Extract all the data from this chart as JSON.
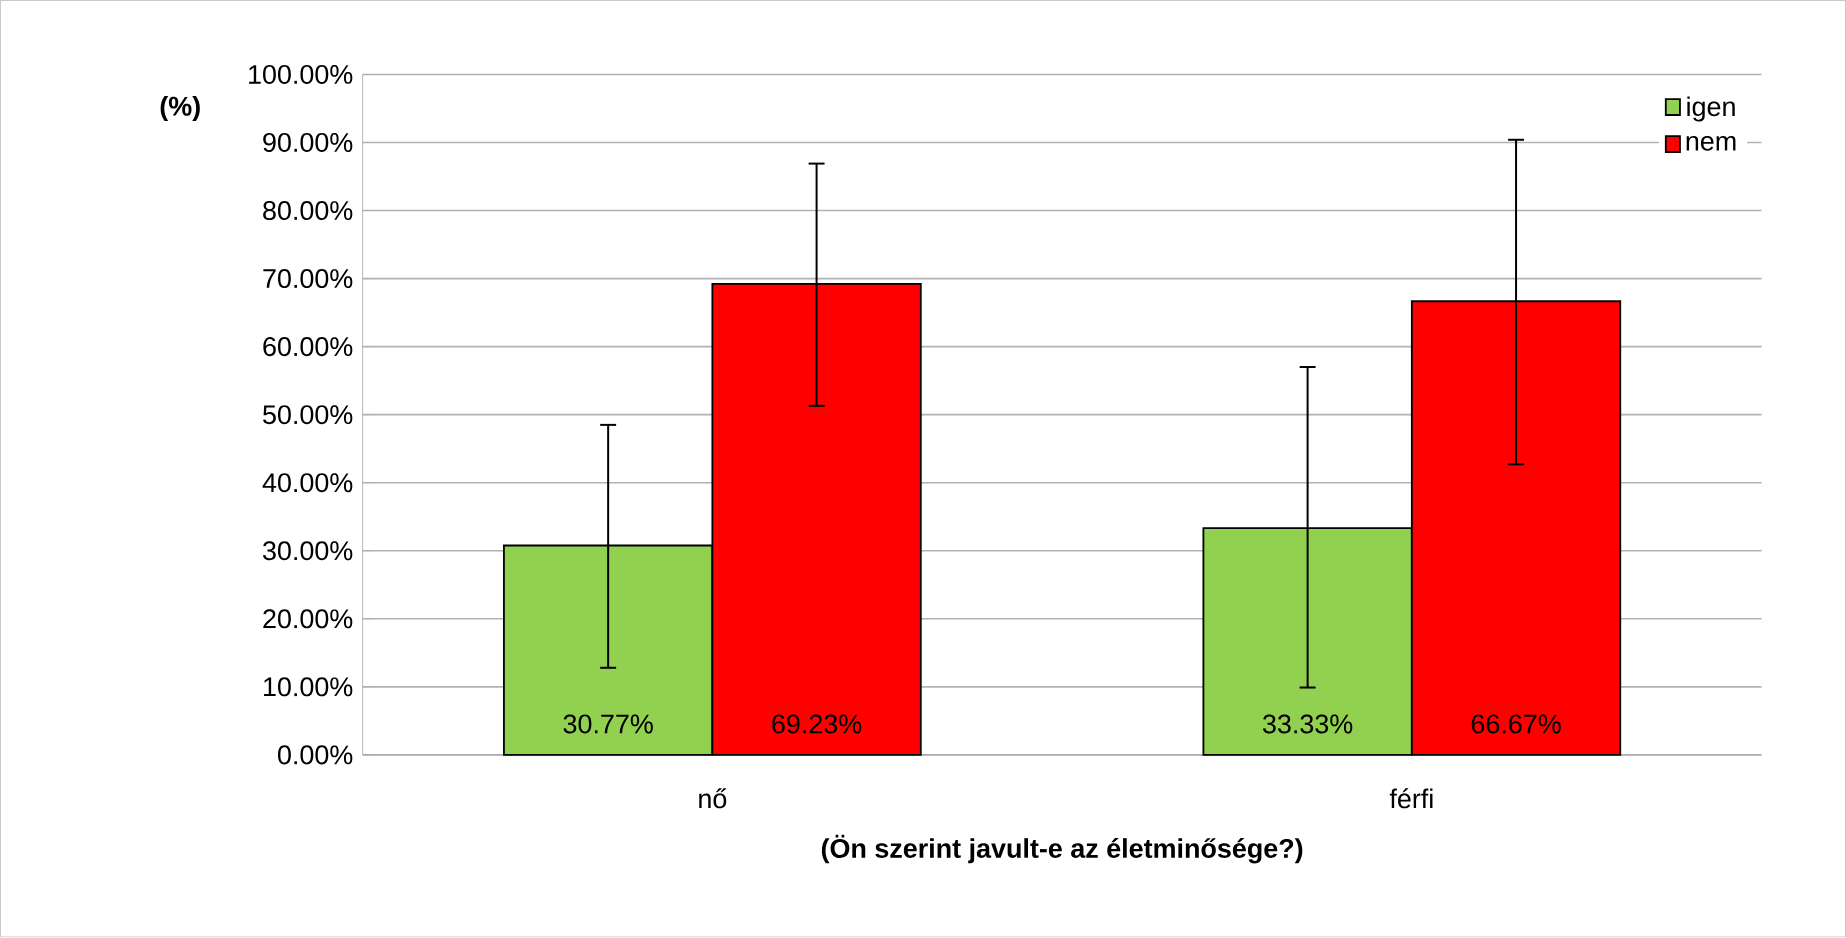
{
  "chart_data": {
    "type": "bar",
    "ylabel": "(%)",
    "xlabel": "(Ön szerint javult-e az életminősége?)",
    "categories": [
      "nő",
      "férfi"
    ],
    "series": [
      {
        "name": "igen",
        "color": "#92d050",
        "values": [
          30.77,
          33.33
        ],
        "value_labels": [
          "30.77%",
          "33.33%"
        ],
        "errors": [
          [
            12.8,
            48.5
          ],
          [
            9.9,
            57.0
          ]
        ]
      },
      {
        "name": "nem",
        "color": "#ff0000",
        "values": [
          69.23,
          66.67
        ],
        "value_labels": [
          "69.23%",
          "66.67%"
        ],
        "errors": [
          [
            51.3,
            86.9
          ],
          [
            42.7,
            90.4
          ]
        ]
      }
    ],
    "ylim": [
      0,
      100
    ],
    "yticks": [
      {
        "value": 0,
        "label": "0.00%"
      },
      {
        "value": 10,
        "label": "10.00%"
      },
      {
        "value": 20,
        "label": "20.00%"
      },
      {
        "value": 30,
        "label": "30.00%"
      },
      {
        "value": 40,
        "label": "40.00%"
      },
      {
        "value": 50,
        "label": "50.00%"
      },
      {
        "value": 60,
        "label": "60.00%"
      },
      {
        "value": 70,
        "label": "70.00%"
      },
      {
        "value": 80,
        "label": "80.00%"
      },
      {
        "value": 90,
        "label": "90.00%"
      },
      {
        "value": 100,
        "label": "100.00%"
      }
    ],
    "grid": "y",
    "legend": "top right"
  }
}
